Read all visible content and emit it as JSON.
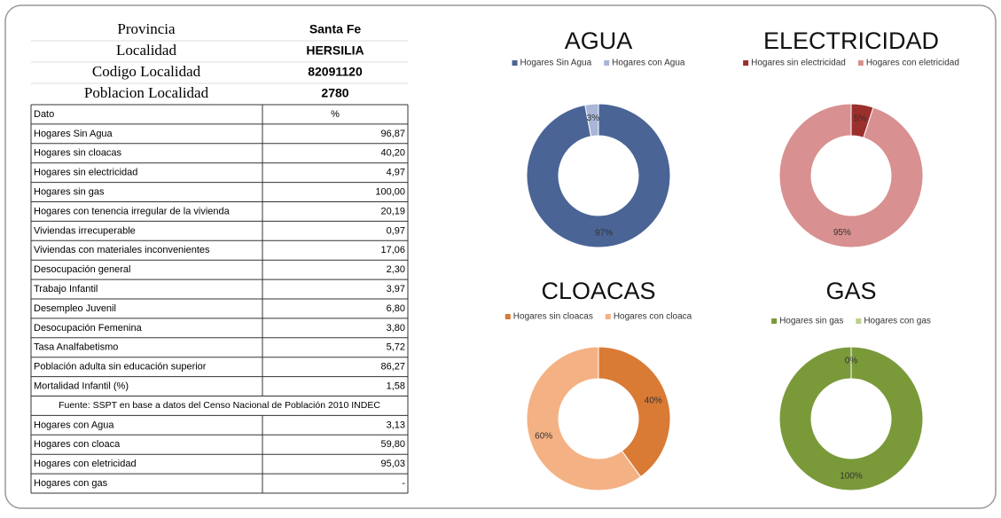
{
  "header": [
    {
      "label": "Provincia",
      "value": "Santa Fe"
    },
    {
      "label": "Localidad",
      "value": "HERSILIA"
    },
    {
      "label": "Codigo Localidad",
      "value": "82091120"
    },
    {
      "label": "Poblacion Localidad",
      "value": "2780"
    }
  ],
  "table": {
    "columns": [
      "Dato",
      "%"
    ],
    "rows": [
      [
        "Hogares Sin Agua",
        "96,87"
      ],
      [
        "Hogares sin cloacas",
        "40,20"
      ],
      [
        "Hogares sin electricidad",
        "4,97"
      ],
      [
        "Hogares sin gas",
        "100,00"
      ],
      [
        "Hogares con tenencia irregular de la vivienda",
        "20,19"
      ],
      [
        "Viviendas irrecuperable",
        "0,97"
      ],
      [
        "Viviendas con materiales inconvenientes",
        "17,06"
      ],
      [
        "Desocupación general",
        "2,30"
      ],
      [
        "Trabajo Infantil",
        "3,97"
      ],
      [
        "Desempleo Juvenil",
        "6,80"
      ],
      [
        "Desocupación Femenina",
        "3,80"
      ],
      [
        "Tasa Analfabetismo",
        "5,72"
      ],
      [
        "Población adulta  sin educación superior",
        "86,27"
      ],
      [
        "Mortalidad Infantil (%)",
        "1,58"
      ]
    ],
    "source": "Fuente: SSPT en base a datos del Censo Nacional de Población 2010 INDEC",
    "extra_rows": [
      [
        "Hogares con Agua",
        "3,13"
      ],
      [
        "Hogares con cloaca",
        "59,80"
      ],
      [
        "Hogares con eletricidad",
        "95,03"
      ],
      [
        "Hogares con gas",
        "-"
      ]
    ]
  },
  "chart_data": [
    {
      "type": "pie",
      "title": "AGUA",
      "categories": [
        "Hogares Sin Agua",
        "Hogares con Agua"
      ],
      "values": [
        97,
        3
      ],
      "value_labels": [
        "97%",
        "3%"
      ],
      "colors": [
        "#4a6496",
        "#a9b6d8"
      ]
    },
    {
      "type": "pie",
      "title": "ELECTRICIDAD",
      "categories": [
        "Hogares sin electricidad",
        "Hogares con eletricidad"
      ],
      "values": [
        5,
        95
      ],
      "value_labels": [
        "5%",
        "95%"
      ],
      "colors": [
        "#9b2f2c",
        "#d89090"
      ]
    },
    {
      "type": "pie",
      "title": "CLOACAS",
      "categories": [
        "Hogares sin cloacas",
        "Hogares con cloaca"
      ],
      "values": [
        40,
        60
      ],
      "value_labels": [
        "40%",
        "60%"
      ],
      "colors": [
        "#d97a35",
        "#f4b183"
      ]
    },
    {
      "type": "pie",
      "title": "GAS",
      "categories": [
        "Hogares sin gas",
        "Hogares con gas"
      ],
      "values": [
        100,
        0
      ],
      "value_labels": [
        "100%",
        "0%"
      ],
      "colors": [
        "#7a9a3a",
        "#bcd08a"
      ]
    }
  ]
}
